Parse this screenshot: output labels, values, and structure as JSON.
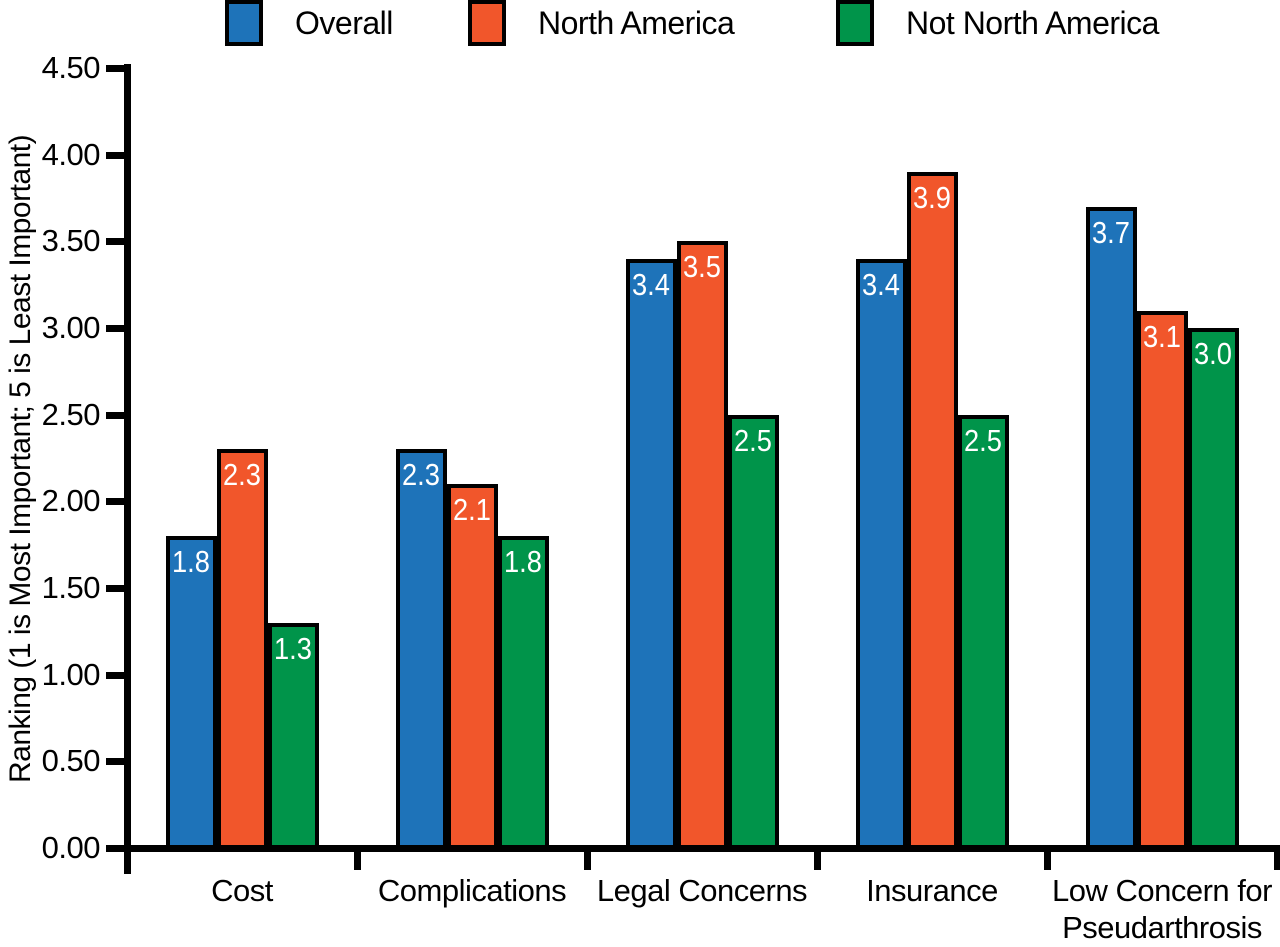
{
  "figure": {
    "background": "#ffffff",
    "axis_color": "#000000",
    "bar_value_text_color": "#ffffff"
  },
  "legend": {
    "position": "top",
    "items": [
      {
        "label": "Overall",
        "color": "#1e73b9"
      },
      {
        "label": "North America",
        "color": "#f1562b"
      },
      {
        "label": "Not North America",
        "color": "#00944a"
      }
    ]
  },
  "chart_data": {
    "type": "bar",
    "title": "",
    "xlabel": "",
    "ylabel": "Ranking (1 is Most Important; 5 is Least Important)",
    "ylim": [
      0,
      4.5
    ],
    "ytick_step": 0.5,
    "ytick_labels": [
      "0.00",
      "0.50",
      "1.00",
      "1.50",
      "2.00",
      "2.50",
      "3.00",
      "3.50",
      "4.00",
      "4.50"
    ],
    "grid": false,
    "legend_position": "top",
    "categories": [
      "Cost",
      "Complications",
      "Legal Concerns",
      "Insurance",
      "Low Concern for Pseudarthrosis"
    ],
    "series": [
      {
        "name": "Overall",
        "color": "#1e73b9",
        "values": [
          1.8,
          2.3,
          3.4,
          3.4,
          3.7
        ],
        "labels": [
          "1.8",
          "2.3",
          "3.4",
          "3.4",
          "3.7"
        ]
      },
      {
        "name": "North America",
        "color": "#f1562b",
        "values": [
          2.3,
          2.1,
          3.5,
          3.9,
          3.1
        ],
        "labels": [
          "2.3",
          "2.1",
          "3.5",
          "3.9",
          "3.1"
        ]
      },
      {
        "name": "Not North America",
        "color": "#00944a",
        "values": [
          1.3,
          1.8,
          2.5,
          2.5,
          3.0
        ],
        "labels": [
          "1.3",
          "1.8",
          "2.5",
          "2.5",
          "3.0"
        ]
      }
    ]
  }
}
